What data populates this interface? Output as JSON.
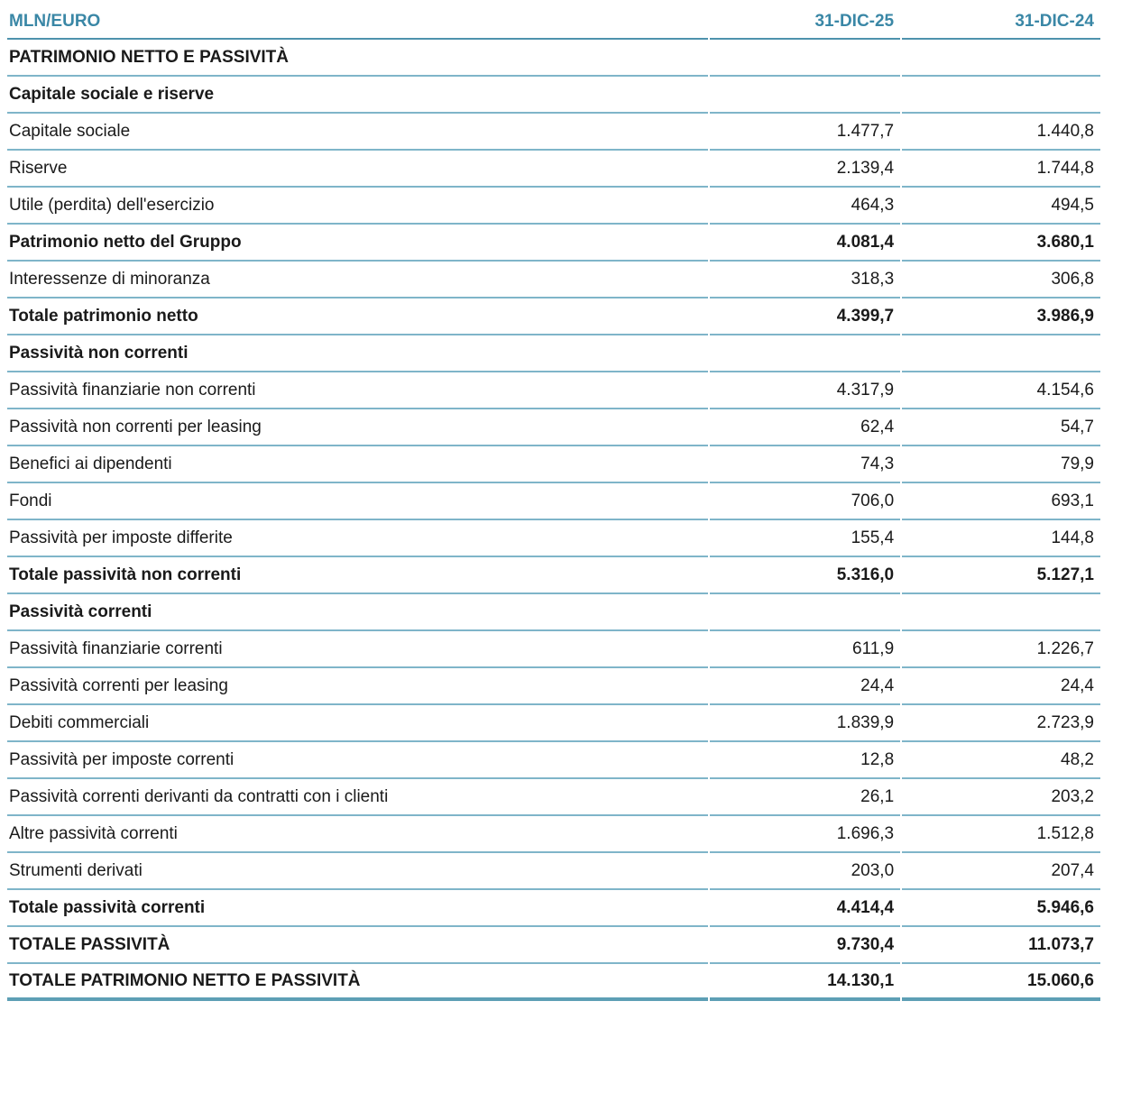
{
  "header": {
    "unit_label": "MLN/EURO",
    "col1_label": "31-DIC-25",
    "col2_label": "31-DIC-24"
  },
  "colors": {
    "accent_teal": "#3a87a6",
    "row_line": "#7fb5c9",
    "strong_line": "#4e92ad",
    "bottom_line": "#5d9fb5",
    "text": "#1a1a1a"
  },
  "rows": [
    {
      "label": "PATRIMONIO NETTO E PASSIVITÀ",
      "v1": "",
      "v2": "",
      "style": "section-caps"
    },
    {
      "label": "Capitale sociale e riserve",
      "v1": "",
      "v2": "",
      "style": "section"
    },
    {
      "label": "Capitale sociale",
      "v1": "1.477,7",
      "v2": "1.440,8",
      "style": "normal"
    },
    {
      "label": "Riserve",
      "v1": "2.139,4",
      "v2": "1.744,8",
      "style": "normal"
    },
    {
      "label": "Utile (perdita) dell'esercizio",
      "v1": "464,3",
      "v2": "494,5",
      "style": "normal"
    },
    {
      "label": "Patrimonio netto del Gruppo",
      "v1": "4.081,4",
      "v2": "3.680,1",
      "style": "total"
    },
    {
      "label": "Interessenze di minoranza",
      "v1": "318,3",
      "v2": "306,8",
      "style": "normal"
    },
    {
      "label": "Totale patrimonio netto",
      "v1": "4.399,7",
      "v2": "3.986,9",
      "style": "total"
    },
    {
      "label": "Passività non correnti",
      "v1": "",
      "v2": "",
      "style": "section"
    },
    {
      "label": "Passività finanziarie non correnti",
      "v1": "4.317,9",
      "v2": "4.154,6",
      "style": "normal"
    },
    {
      "label": "Passività non correnti per leasing",
      "v1": "62,4",
      "v2": "54,7",
      "style": "normal"
    },
    {
      "label": "Benefici ai dipendenti",
      "v1": "74,3",
      "v2": "79,9",
      "style": "normal"
    },
    {
      "label": "Fondi",
      "v1": "706,0",
      "v2": "693,1",
      "style": "normal"
    },
    {
      "label": "Passività per imposte differite",
      "v1": "155,4",
      "v2": "144,8",
      "style": "normal"
    },
    {
      "label": "Totale passività non correnti",
      "v1": "5.316,0",
      "v2": "5.127,1",
      "style": "total"
    },
    {
      "label": "Passività correnti",
      "v1": "",
      "v2": "",
      "style": "section"
    },
    {
      "label": "Passività finanziarie correnti",
      "v1": "611,9",
      "v2": "1.226,7",
      "style": "normal"
    },
    {
      "label": "Passività correnti per leasing",
      "v1": "24,4",
      "v2": "24,4",
      "style": "normal"
    },
    {
      "label": "Debiti commerciali",
      "v1": "1.839,9",
      "v2": "2.723,9",
      "style": "normal"
    },
    {
      "label": "Passività per imposte correnti",
      "v1": "12,8",
      "v2": "48,2",
      "style": "normal"
    },
    {
      "label": "Passività correnti derivanti da contratti con i clienti",
      "v1": "26,1",
      "v2": "203,2",
      "style": "normal"
    },
    {
      "label": "Altre passività correnti",
      "v1": "1.696,3",
      "v2": "1.512,8",
      "style": "normal"
    },
    {
      "label": "Strumenti derivati",
      "v1": "203,0",
      "v2": "207,4",
      "style": "normal"
    },
    {
      "label": "Totale passività correnti",
      "v1": "4.414,4",
      "v2": "5.946,6",
      "style": "total"
    },
    {
      "label": "TOTALE PASSIVITÀ",
      "v1": "9.730,4",
      "v2": "11.073,7",
      "style": "total-caps"
    },
    {
      "label": "TOTALE PATRIMONIO NETTO E PASSIVITÀ",
      "v1": "14.130,1",
      "v2": "15.060,6",
      "style": "total-caps"
    }
  ]
}
